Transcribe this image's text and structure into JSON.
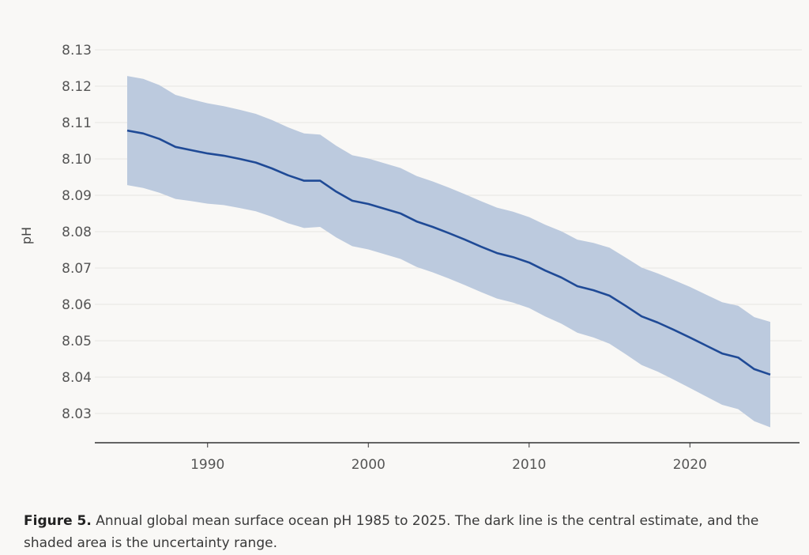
{
  "chart_data": {
    "type": "area",
    "title": "",
    "xlabel": "",
    "ylabel": "pH",
    "xlim": [
      1985,
      2025
    ],
    "ylim": [
      8.022,
      8.13
    ],
    "x_ticks": [
      1990,
      2000,
      2010,
      2020
    ],
    "y_ticks": [
      "8.03",
      "8.04",
      "8.05",
      "8.06",
      "8.07",
      "8.08",
      "8.09",
      "8.10",
      "8.11",
      "8.12",
      "8.13"
    ],
    "grid": "horizontal",
    "colors": {
      "line": "#1f4a96",
      "band": "#bccade",
      "grid": "#e8e6e2",
      "axis": "#333333"
    },
    "x": [
      1985,
      1986,
      1987,
      1988,
      1989,
      1990,
      1991,
      1992,
      1993,
      1994,
      1995,
      1996,
      1997,
      1998,
      1999,
      2000,
      2001,
      2002,
      2003,
      2004,
      2005,
      2006,
      2007,
      2008,
      2009,
      2010,
      2011,
      2012,
      2013,
      2014,
      2015,
      2016,
      2017,
      2018,
      2019,
      2020,
      2021,
      2022,
      2023,
      2024,
      2025
    ],
    "series": [
      {
        "role": "central estimate",
        "values": [
          8.1078,
          8.107,
          8.1055,
          8.1033,
          8.1024,
          8.1015,
          8.1009,
          8.1,
          8.099,
          8.0974,
          8.0955,
          8.094,
          8.094,
          8.091,
          8.0885,
          8.0876,
          8.0863,
          8.085,
          8.0828,
          8.0813,
          8.0796,
          8.0778,
          8.0759,
          8.0741,
          8.073,
          8.0715,
          8.0693,
          8.0674,
          8.065,
          8.0639,
          8.0624,
          8.0596,
          8.0567,
          8.055,
          8.053,
          8.0509,
          8.0487,
          8.0465,
          8.0454,
          8.0422,
          8.0407
        ]
      },
      {
        "role": "uncertainty upper",
        "values": [
          8.1228,
          8.122,
          8.1203,
          8.1176,
          8.1164,
          8.1153,
          8.1145,
          8.1135,
          8.1124,
          8.1107,
          8.1087,
          8.107,
          8.1067,
          8.1036,
          8.101,
          8.1001,
          8.0988,
          8.0975,
          8.0953,
          8.0938,
          8.0921,
          8.0903,
          8.0884,
          8.0866,
          8.0855,
          8.084,
          8.0819,
          8.0801,
          8.0778,
          8.0769,
          8.0756,
          8.0729,
          8.0701,
          8.0685,
          8.0667,
          8.0648,
          8.0627,
          8.0606,
          8.0596,
          8.0565,
          8.0552
        ]
      },
      {
        "role": "uncertainty lower",
        "values": [
          8.0928,
          8.092,
          8.0907,
          8.089,
          8.0884,
          8.0877,
          8.0873,
          8.0865,
          8.0856,
          8.0841,
          8.0823,
          8.081,
          8.0813,
          8.0784,
          8.076,
          8.0751,
          8.0738,
          8.0725,
          8.0703,
          8.0688,
          8.0671,
          8.0653,
          8.0634,
          8.0616,
          8.0605,
          8.059,
          8.0567,
          8.0547,
          8.0522,
          8.0509,
          8.0492,
          8.0463,
          8.0433,
          8.0415,
          8.0393,
          8.037,
          8.0347,
          8.0324,
          8.0312,
          8.0279,
          8.0262
        ]
      }
    ]
  },
  "caption": {
    "label": "Figure 5.",
    "text": " Annual global mean surface ocean pH 1985 to 2025. The dark line is the central estimate, and the shaded area is the uncertainty range."
  }
}
